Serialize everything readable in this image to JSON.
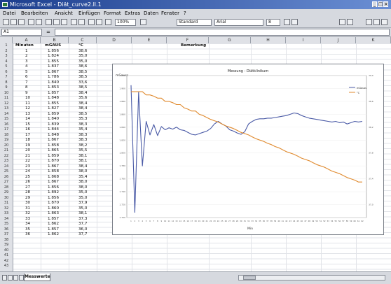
{
  "app": {
    "title": "Microsoft Excel - Diät_curve2.ll.1",
    "window_controls": [
      "_",
      "□",
      "×"
    ]
  },
  "menu": [
    "Datei",
    "Bearbeiten",
    "Ansicht",
    "Einfügen",
    "Format",
    "Extras",
    "Daten",
    "Fenster",
    "?"
  ],
  "toolbar": {
    "zoom": "100%",
    "style": "Standard",
    "font": "Arial",
    "size": "8"
  },
  "formula_bar": {
    "name_box": "A1",
    "equals": "="
  },
  "columns": [
    "A",
    "B",
    "C",
    "D",
    "E",
    "F",
    "G",
    "H",
    "I",
    "J",
    "K"
  ],
  "table": {
    "headers": [
      "Minuten",
      "mGAUS",
      "°C",
      "",
      "",
      "",
      "Bemerkung"
    ],
    "rows": [
      [
        "1",
        "1.856",
        "38,6"
      ],
      [
        "2",
        "1.824",
        "35,0"
      ],
      [
        "3",
        "1.855",
        "35,0"
      ],
      [
        "4",
        "1.837",
        "38,6"
      ],
      [
        "5",
        "1.867",
        "38,5"
      ],
      [
        "6",
        "1.786",
        "38,5"
      ],
      [
        "7",
        "1.840",
        "33,6"
      ],
      [
        "8",
        "1.853",
        "38,5"
      ],
      [
        "9",
        "1.857",
        "38,4"
      ],
      [
        "10",
        "1.848",
        "35,6"
      ],
      [
        "11",
        "1.855",
        "38,4"
      ],
      [
        "12",
        "1.827",
        "38,4"
      ],
      [
        "13",
        "1.859",
        "38,5"
      ],
      [
        "14",
        "1.840",
        "35,3"
      ],
      [
        "15",
        "1.839",
        "38,3"
      ],
      [
        "16",
        "1.844",
        "35,4"
      ],
      [
        "17",
        "1.848",
        "38,3"
      ],
      [
        "18",
        "1.867",
        "38,3"
      ],
      [
        "19",
        "1.858",
        "38,2"
      ],
      [
        "20",
        "1.865",
        "35,5"
      ],
      [
        "21",
        "1.859",
        "38,1"
      ],
      [
        "22",
        "1.870",
        "38,1"
      ],
      [
        "23",
        "1.867",
        "38,4"
      ],
      [
        "24",
        "1.858",
        "38,0"
      ],
      [
        "25",
        "1.868",
        "35,4"
      ],
      [
        "26",
        "1.867",
        "38,0"
      ],
      [
        "27",
        "1.856",
        "38,0"
      ],
      [
        "28",
        "1.892",
        "35,0"
      ],
      [
        "29",
        "1.856",
        "35,0"
      ],
      [
        "30",
        "1.870",
        "37,9"
      ],
      [
        "31",
        "1.860",
        "35,0"
      ],
      [
        "32",
        "1.863",
        "38,1"
      ],
      [
        "33",
        "1.857",
        "37,3"
      ],
      [
        "34",
        "1.862",
        "37,7"
      ],
      [
        "35",
        "1.857",
        "36,0"
      ],
      [
        "36",
        "1.862",
        "37,7"
      ]
    ]
  },
  "chart_data": {
    "type": "line",
    "title": "Messung - Diätklinikum",
    "xlabel": "Min",
    "ylabel_left": "mGauss",
    "ylabel_right": "°C",
    "ylim_left": [
      1700,
      1920
    ],
    "ylim_right": [
      36.8,
      39.0
    ],
    "x": [
      1,
      2,
      3,
      4,
      5,
      6,
      7,
      8,
      9,
      10,
      11,
      12,
      13,
      14,
      15,
      16,
      17,
      18,
      19,
      20,
      21,
      22,
      23,
      24,
      25,
      26,
      27,
      28,
      29,
      30,
      31,
      32,
      33,
      34,
      35,
      36,
      37,
      38,
      39,
      40,
      41,
      42,
      43,
      44,
      45,
      46,
      47,
      48,
      49,
      50,
      51,
      52,
      53,
      54,
      55,
      56,
      57,
      58,
      59,
      60,
      61,
      62
    ],
    "series": [
      {
        "axis": "left",
        "color": "#4a5aa6",
        "values": [
          1905,
          1708,
          1894,
          1780,
          1849,
          1828,
          1844,
          1827,
          1841,
          1836,
          1839,
          1837,
          1840,
          1836,
          1835,
          1832,
          1829,
          1828,
          1830,
          1832,
          1834,
          1838,
          1845,
          1849,
          1845,
          1842,
          1836,
          1834,
          1831,
          1829,
          1833,
          1845,
          1849,
          1852,
          1853,
          1853,
          1854,
          1854,
          1855,
          1856,
          1857,
          1858,
          1860,
          1862,
          1861,
          1858,
          1856,
          1854,
          1853,
          1852,
          1851,
          1850,
          1849,
          1848,
          1849,
          1847,
          1848,
          1845,
          1847,
          1849,
          1848,
          1849
        ]
      },
      {
        "axis": "right",
        "color": "#e08a2e",
        "values": [
          38.75,
          38.75,
          38.75,
          38.75,
          38.7,
          38.7,
          38.68,
          38.65,
          38.65,
          38.6,
          38.6,
          38.58,
          38.55,
          38.55,
          38.5,
          38.48,
          38.45,
          38.45,
          38.4,
          38.38,
          38.35,
          38.32,
          38.3,
          38.28,
          38.25,
          38.22,
          38.2,
          38.18,
          38.15,
          38.12,
          38.1,
          38.08,
          38.05,
          38.02,
          38.0,
          37.98,
          37.95,
          37.93,
          37.9,
          37.88,
          37.85,
          37.82,
          37.8,
          37.78,
          37.75,
          37.72,
          37.7,
          37.68,
          37.65,
          37.62,
          37.6,
          37.58,
          37.55,
          37.52,
          37.5,
          37.48,
          37.45,
          37.42,
          37.4,
          37.38,
          37.35,
          37.35
        ]
      }
    ],
    "legend": "right",
    "legend_entries": [
      "mGauss",
      "°C"
    ]
  },
  "sheet_tab": "Messwerte",
  "colors": {
    "title_bar": "#1c3e8e",
    "mgauss_line": "#4a5aa6",
    "temp_line": "#e08a2e"
  }
}
